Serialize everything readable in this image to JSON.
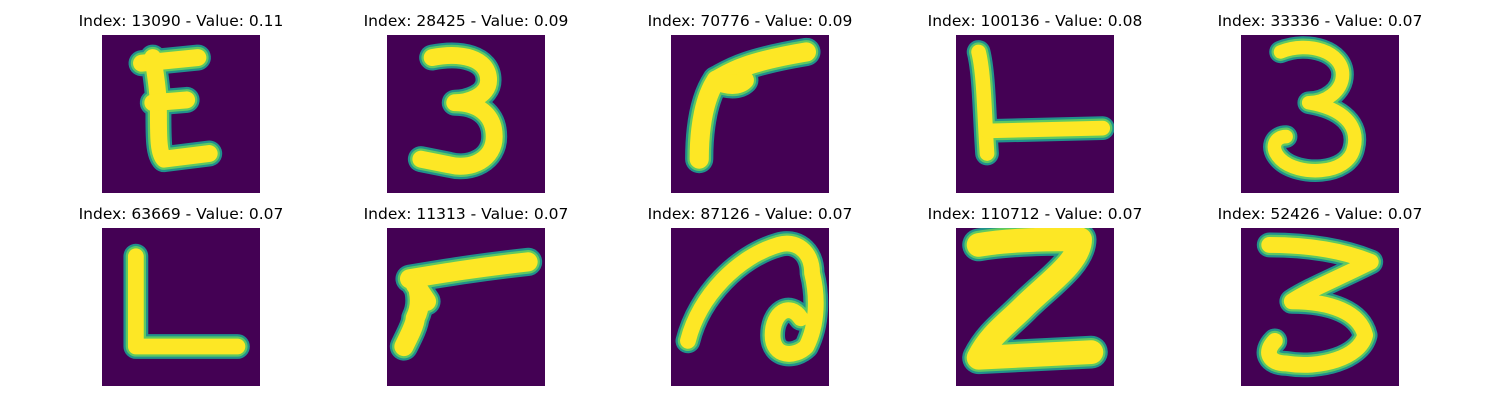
{
  "chart_data": {
    "type": "image-grid",
    "rows": 2,
    "cols": 5,
    "colormap": {
      "background": "#440154",
      "mid": "#21918c",
      "edge": "#5ec962",
      "foreground": "#fde725"
    },
    "panels": [
      {
        "title": "Index: 13090 - Value: 0.11",
        "index": 13090,
        "value": 0.11,
        "glyph": "E"
      },
      {
        "title": "Index: 28425 - Value: 0.09",
        "index": 28425,
        "value": 0.09,
        "glyph": "3"
      },
      {
        "title": "Index: 70776 - Value: 0.09",
        "index": 70776,
        "value": 0.09,
        "glyph": "angled stroke"
      },
      {
        "title": "Index: 100136 - Value: 0.08",
        "index": 100136,
        "value": 0.08,
        "glyph": "L (rotated)"
      },
      {
        "title": "Index: 33336 - Value: 0.07",
        "index": 33336,
        "value": 0.07,
        "glyph": "3"
      },
      {
        "title": "Index: 63669 - Value: 0.07",
        "index": 63669,
        "value": 0.07,
        "glyph": "L"
      },
      {
        "title": "Index: 11313 - Value: 0.07",
        "index": 11313,
        "value": 0.07,
        "glyph": "angled stroke"
      },
      {
        "title": "Index: 87126 - Value: 0.07",
        "index": 87126,
        "value": 0.07,
        "glyph": "a (rotated)"
      },
      {
        "title": "Index: 110712 - Value: 0.07",
        "index": 110712,
        "value": 0.07,
        "glyph": "Z"
      },
      {
        "title": "Index: 52426 - Value: 0.07",
        "index": 52426,
        "value": 0.07,
        "glyph": "3"
      }
    ]
  }
}
